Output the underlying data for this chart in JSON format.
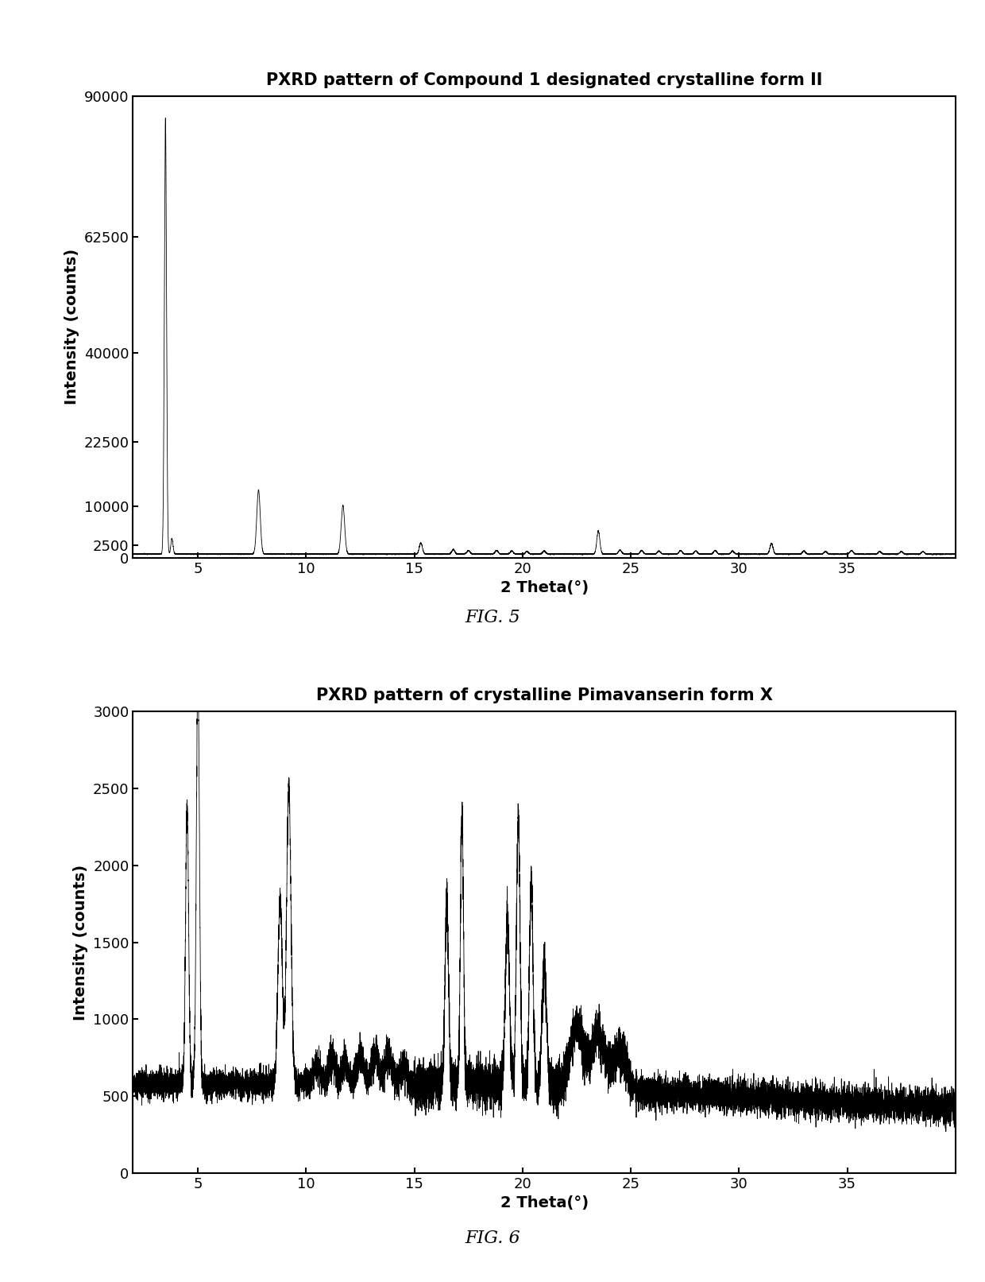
{
  "fig5_title": "PXRD pattern of Compound 1 designated crystalline form II",
  "fig5_xlabel": "2 Theta(°)",
  "fig5_ylabel": "Intensity (counts)",
  "fig5_label": "FIG. 5",
  "fig5_ylim": [
    0,
    90000
  ],
  "fig5_xlim": [
    2,
    40
  ],
  "fig5_yticks": [
    0,
    2500,
    10000,
    22500,
    40000,
    62500,
    90000
  ],
  "fig5_xticks": [
    5,
    10,
    15,
    20,
    25,
    30,
    35
  ],
  "fig6_title": "PXRD pattern of crystalline Pimavanserin form X",
  "fig6_xlabel": "2 Theta(°)",
  "fig6_ylabel": "Intensity (counts)",
  "fig6_label": "FIG. 6",
  "fig6_ylim": [
    0,
    3000
  ],
  "fig6_xlim": [
    2,
    40
  ],
  "fig6_yticks": [
    0,
    500,
    1000,
    1500,
    2000,
    2500,
    3000
  ],
  "fig6_xticks": [
    5,
    10,
    15,
    20,
    25,
    30,
    35
  ],
  "line_color": "#000000",
  "bg_color": "#ffffff",
  "title_fontsize": 15,
  "label_fontsize": 14,
  "tick_fontsize": 13
}
